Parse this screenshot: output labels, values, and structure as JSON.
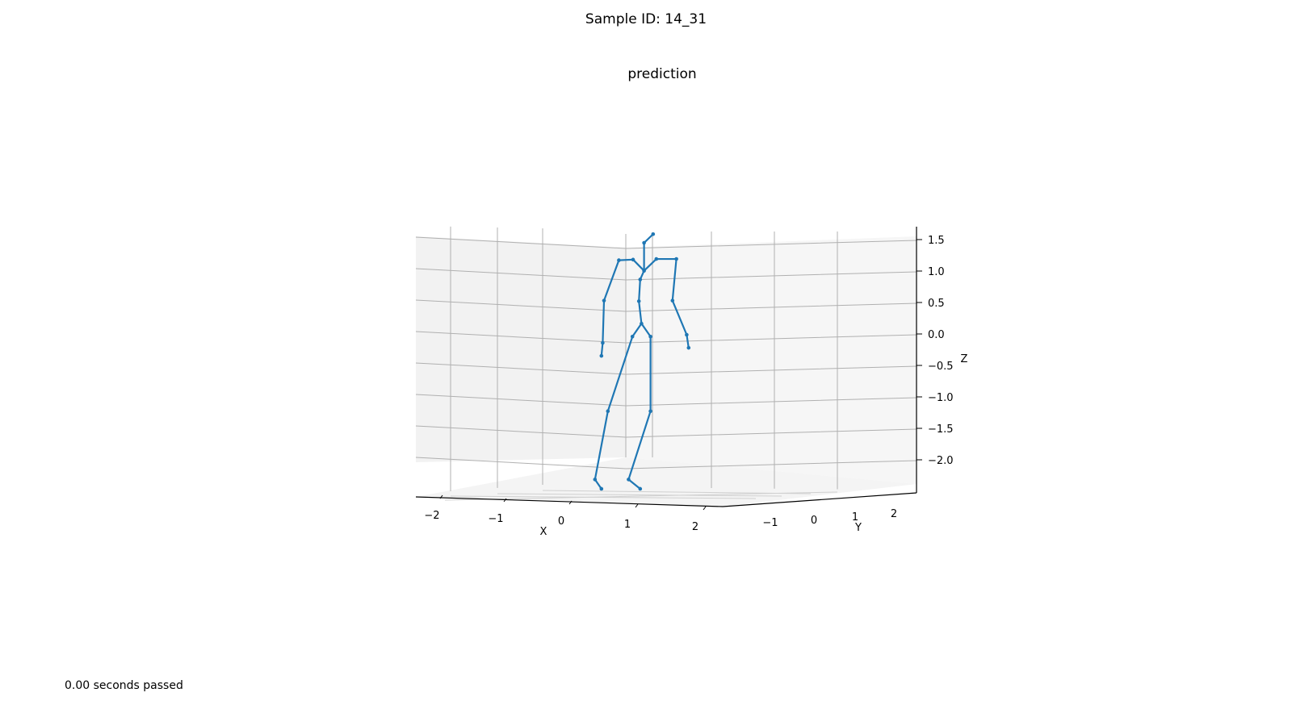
{
  "figure": {
    "suptitle": "Sample ID: 14_31",
    "footer": "0.00 seconds passed"
  },
  "chart_data": {
    "type": "3d-line",
    "title": "prediction",
    "grid": true,
    "colors": {
      "skeleton": "#1f77b4",
      "grid": "#b0b0b0",
      "pane": "#f2f2f2"
    },
    "axes": {
      "x": {
        "label": "X",
        "ticks": [
          "−2",
          "−1",
          "0",
          "1",
          "2"
        ]
      },
      "y": {
        "label": "Y",
        "ticks": [
          "−1",
          "0",
          "1",
          "2"
        ]
      },
      "z": {
        "label": "Z",
        "ticks": [
          "1.5",
          "1.0",
          "0.5",
          "0.0",
          "−0.5",
          "−1.0",
          "−1.5",
          "−2.0"
        ]
      }
    },
    "series": [
      {
        "points": [
          [
            -0.12,
            0.0,
            0.18
          ],
          [
            -0.26,
            0.0,
            -0.03
          ],
          [
            -0.64,
            0.0,
            -1.23
          ],
          [
            -0.84,
            0.0,
            -2.33
          ],
          [
            -0.74,
            0.0,
            -2.48
          ],
          [
            0.02,
            0.0,
            -0.03
          ],
          [
            0.02,
            0.0,
            -1.23
          ],
          [
            -0.32,
            0.0,
            -2.33
          ],
          [
            -0.14,
            0.0,
            -2.48
          ],
          [
            -0.16,
            0.0,
            0.54
          ],
          [
            -0.14,
            0.0,
            0.89
          ],
          [
            -0.08,
            0.0,
            1.03
          ],
          [
            -0.08,
            0.0,
            1.48
          ],
          [
            0.06,
            0.0,
            1.62
          ],
          [
            0.11,
            0.0,
            1.22
          ],
          [
            0.42,
            0.0,
            1.22
          ],
          [
            0.36,
            0.0,
            0.55
          ],
          [
            0.58,
            0.0,
            0.0
          ],
          [
            0.61,
            0.0,
            -0.21
          ],
          [
            -0.25,
            0.0,
            1.21
          ],
          [
            -0.47,
            0.0,
            1.2
          ],
          [
            -0.7,
            0.0,
            0.55
          ],
          [
            -0.72,
            0.0,
            -0.13
          ],
          [
            -0.74,
            0.0,
            -0.34
          ]
        ],
        "bones": [
          [
            0,
            1
          ],
          [
            1,
            2
          ],
          [
            2,
            3
          ],
          [
            3,
            4
          ],
          [
            0,
            5
          ],
          [
            5,
            6
          ],
          [
            6,
            7
          ],
          [
            7,
            8
          ],
          [
            0,
            9
          ],
          [
            9,
            10
          ],
          [
            10,
            11
          ],
          [
            11,
            12
          ],
          [
            12,
            13
          ],
          [
            11,
            14
          ],
          [
            14,
            15
          ],
          [
            15,
            16
          ],
          [
            16,
            17
          ],
          [
            17,
            18
          ],
          [
            11,
            19
          ],
          [
            19,
            20
          ],
          [
            20,
            21
          ],
          [
            21,
            22
          ],
          [
            22,
            23
          ]
        ]
      }
    ]
  }
}
